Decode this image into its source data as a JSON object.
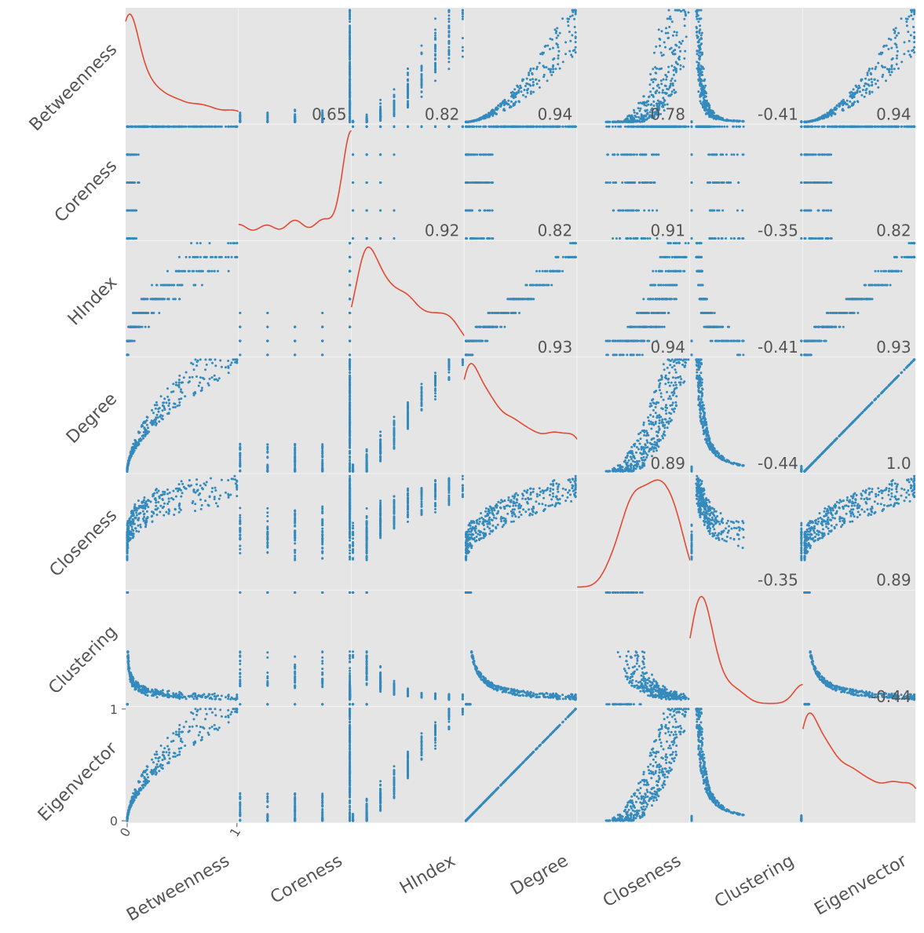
{
  "chart_data": {
    "type": "scatter_matrix",
    "variables": [
      "Betweenness",
      "Coreness",
      "HIndex",
      "Degree",
      "Closeness",
      "Clustering",
      "Eigenvector"
    ],
    "diagonal": "kde",
    "correlations": [
      {
        "row": "Betweenness",
        "col": "Coreness",
        "value": "0.65"
      },
      {
        "row": "Betweenness",
        "col": "HIndex",
        "value": "0.82"
      },
      {
        "row": "Betweenness",
        "col": "Degree",
        "value": "0.94"
      },
      {
        "row": "Betweenness",
        "col": "Closeness",
        "value": "0.78"
      },
      {
        "row": "Betweenness",
        "col": "Clustering",
        "value": "-0.41"
      },
      {
        "row": "Betweenness",
        "col": "Eigenvector",
        "value": "0.94"
      },
      {
        "row": "Coreness",
        "col": "HIndex",
        "value": "0.92"
      },
      {
        "row": "Coreness",
        "col": "Degree",
        "value": "0.82"
      },
      {
        "row": "Coreness",
        "col": "Closeness",
        "value": "0.91"
      },
      {
        "row": "Coreness",
        "col": "Clustering",
        "value": "-0.35"
      },
      {
        "row": "Coreness",
        "col": "Eigenvector",
        "value": "0.82"
      },
      {
        "row": "HIndex",
        "col": "Degree",
        "value": "0.93"
      },
      {
        "row": "HIndex",
        "col": "Closeness",
        "value": "0.94"
      },
      {
        "row": "HIndex",
        "col": "Clustering",
        "value": "-0.41"
      },
      {
        "row": "HIndex",
        "col": "Eigenvector",
        "value": "0.93"
      },
      {
        "row": "Degree",
        "col": "Closeness",
        "value": "0.89"
      },
      {
        "row": "Degree",
        "col": "Clustering",
        "value": "-0.44"
      },
      {
        "row": "Degree",
        "col": "Eigenvector",
        "value": "1.0"
      },
      {
        "row": "Closeness",
        "col": "Clustering",
        "value": "-0.35"
      },
      {
        "row": "Closeness",
        "col": "Eigenvector",
        "value": "0.89"
      },
      {
        "row": "Clustering",
        "col": "Eigenvector",
        "value": "-0.44"
      }
    ],
    "x_ticks": {
      "column": "Betweenness",
      "labels": [
        "0",
        "1"
      ]
    },
    "y_ticks": {
      "row": "Eigenvector",
      "labels": [
        "0",
        "1"
      ]
    },
    "xlim": [
      0,
      1
    ],
    "ylim": [
      0,
      1
    ],
    "grid": true
  }
}
